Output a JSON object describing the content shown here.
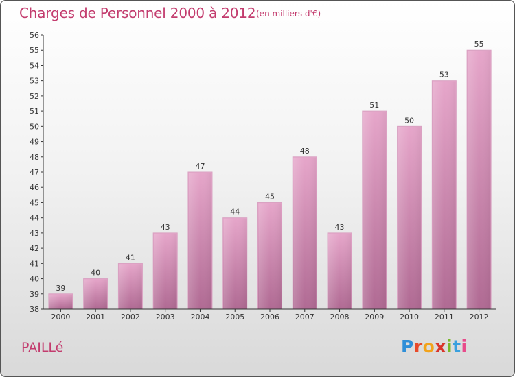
{
  "header": {
    "title": "Charges de Personnel 2000 à 2012",
    "subtitle": "(en milliers d'€)"
  },
  "footer": {
    "commune": "PAILLé",
    "logo_letters": [
      "P",
      "r",
      "o",
      "x",
      "i",
      "t",
      "i"
    ]
  },
  "colors": {
    "title": "#c33c6e",
    "bar_top": "#e6a6ca",
    "bar_bottom": "#b06a93",
    "axis": "#333333"
  },
  "chart_data": {
    "type": "bar",
    "categories": [
      "2000",
      "2001",
      "2002",
      "2003",
      "2004",
      "2005",
      "2006",
      "2007",
      "2008",
      "2009",
      "2010",
      "2011",
      "2012"
    ],
    "values": [
      39,
      40,
      41,
      43,
      47,
      44,
      45,
      48,
      43,
      51,
      50,
      53,
      55
    ],
    "title": "Charges de Personnel 2000 à 2012",
    "subtitle": "(en milliers d'€)",
    "xlabel": "",
    "ylabel": "",
    "ylim": [
      38,
      56
    ],
    "yticks": [
      38,
      39,
      40,
      41,
      42,
      43,
      44,
      45,
      46,
      47,
      48,
      49,
      50,
      51,
      52,
      53,
      54,
      55,
      56
    ],
    "grid": false,
    "legend": "none"
  }
}
